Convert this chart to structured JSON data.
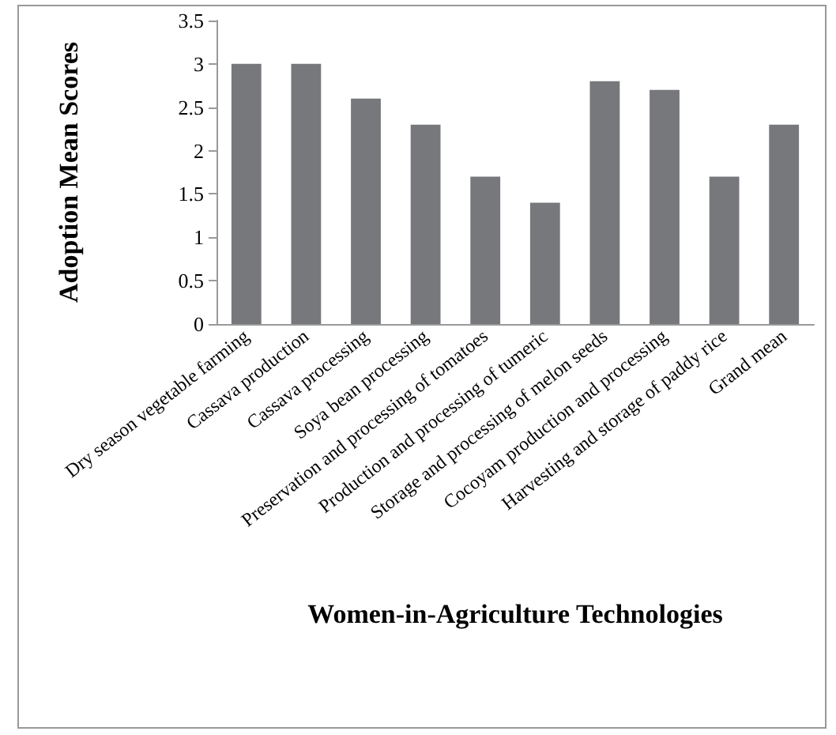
{
  "chart_data": {
    "type": "bar",
    "xlabel": "Women-in-Agriculture Technologies",
    "ylabel": "Adoption Mean Scores",
    "categories": [
      "Dry season vegetable farming",
      "Cassava production",
      "Cassava processing",
      "Soya bean processing",
      "Preservation and processing of tomatoes",
      "Production and processing of tumeric",
      "Storage and processing of melon seeds",
      "Cocoyam production and processing",
      "Harvesting and storage of paddy rice",
      "Grand mean"
    ],
    "series": [
      {
        "color": "#77787b",
        "values": [
          3,
          3,
          2.6,
          2.3,
          1.7,
          1.4,
          2.8,
          2.7,
          1.7,
          2.3
        ]
      }
    ],
    "ylim": [
      0,
      3.5
    ],
    "yticks": [
      0,
      0.5,
      1,
      1.5,
      2,
      2.5,
      3,
      3.5
    ],
    "grid": false
  }
}
